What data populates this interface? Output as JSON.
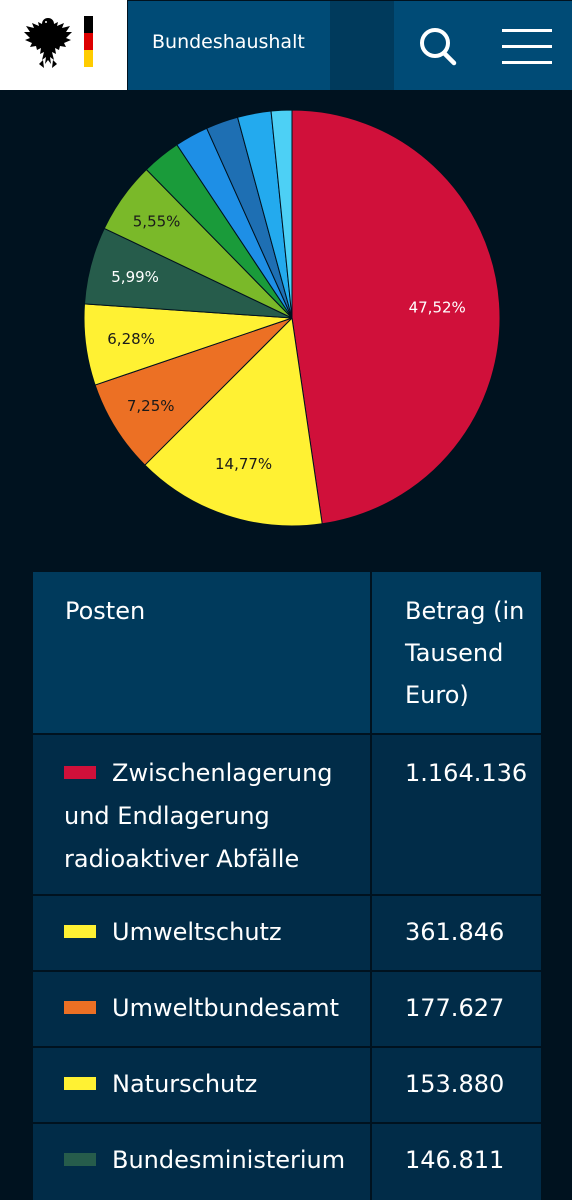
{
  "header": {
    "title": "Bundeshaushalt",
    "icons": [
      "eagle-icon",
      "search-icon",
      "menu-icon"
    ],
    "flag_colors": [
      "#000000",
      "#dd0000",
      "#ffcc00"
    ]
  },
  "chart_data": {
    "type": "pie",
    "title": "",
    "slices": [
      {
        "value": 47.52,
        "label": "47,52%",
        "color": "#d0103a"
      },
      {
        "value": 14.77,
        "label": "14,77%",
        "color": "#fff133"
      },
      {
        "value": 7.25,
        "label": "7,25%",
        "color": "#ec7024"
      },
      {
        "value": 6.28,
        "label": "6,28%",
        "color": "#fff133"
      },
      {
        "value": 5.99,
        "label": "5,99%",
        "color": "#265c4b"
      },
      {
        "value": 5.55,
        "label": "5,55%",
        "color": "#7ab929"
      },
      {
        "value": 3.0,
        "label": "",
        "color": "#1a9b3a"
      },
      {
        "value": 2.6,
        "label": "",
        "color": "#1e8fe6"
      },
      {
        "value": 2.5,
        "label": "",
        "color": "#1e6fb3"
      },
      {
        "value": 2.6,
        "label": "",
        "color": "#23aaee"
      },
      {
        "value": 1.6,
        "label": "",
        "color": "#4dd0f5"
      }
    ],
    "label_colors": [
      "#ffffff",
      "#1a1a1a",
      "#1a1a1a",
      "#1a1a1a",
      "#ffffff",
      "#1a1a1a"
    ]
  },
  "table": {
    "headers": [
      "Posten",
      "Betrag (in Tausend Euro)"
    ],
    "rows": [
      {
        "name": "Zwischenlagerung und Endlagerung radioaktiver Abfälle",
        "value": "1.164.136",
        "color": "#d0103a"
      },
      {
        "name": "Umweltschutz",
        "value": "361.846",
        "color": "#fff133"
      },
      {
        "name": "Umweltbundesamt",
        "value": "177.627",
        "color": "#ec7024"
      },
      {
        "name": "Naturschutz",
        "value": "153.880",
        "color": "#fff133"
      },
      {
        "name": "Bundesministerium",
        "value": "146.811",
        "color": "#265c4b"
      }
    ]
  }
}
